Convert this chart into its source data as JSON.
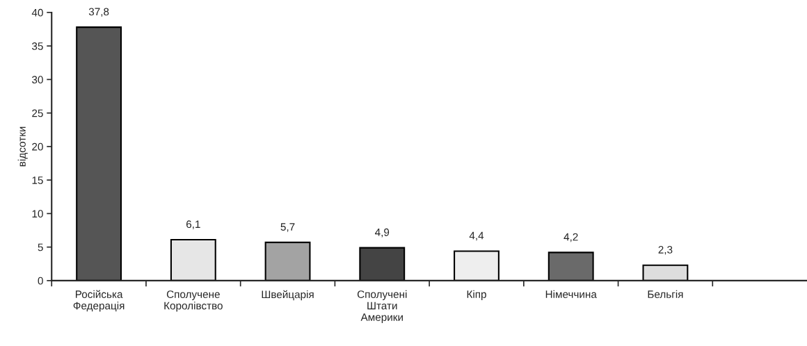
{
  "chart_data": {
    "type": "bar",
    "ylabel": "відсотки",
    "categories": [
      "Російська\nФедерація",
      "Сполучене\nКоролівство",
      "Швейцарія",
      "Сполучені\nШтати\nАмерики",
      "Кіпр",
      "Німеччина",
      "Бельгія",
      null
    ],
    "values": [
      37.8,
      6.1,
      5.7,
      4.9,
      4.4,
      4.2,
      2.3,
      null
    ],
    "colors": [
      "#555555",
      "#e6e6e6",
      "#a3a3a3",
      "#444444",
      "#eeeeee",
      "#6a6a6a",
      "#dddddd",
      "#ffffff"
    ],
    "value_labels": [
      "37,8",
      "6,1",
      "5,7",
      "4,9",
      "4,4",
      "4,2",
      "2,3",
      null
    ],
    "ylim": [
      0,
      40
    ],
    "yticks": [
      0,
      5,
      10,
      15,
      20,
      25,
      30,
      35,
      40
    ],
    "grid": false,
    "legend": false
  }
}
